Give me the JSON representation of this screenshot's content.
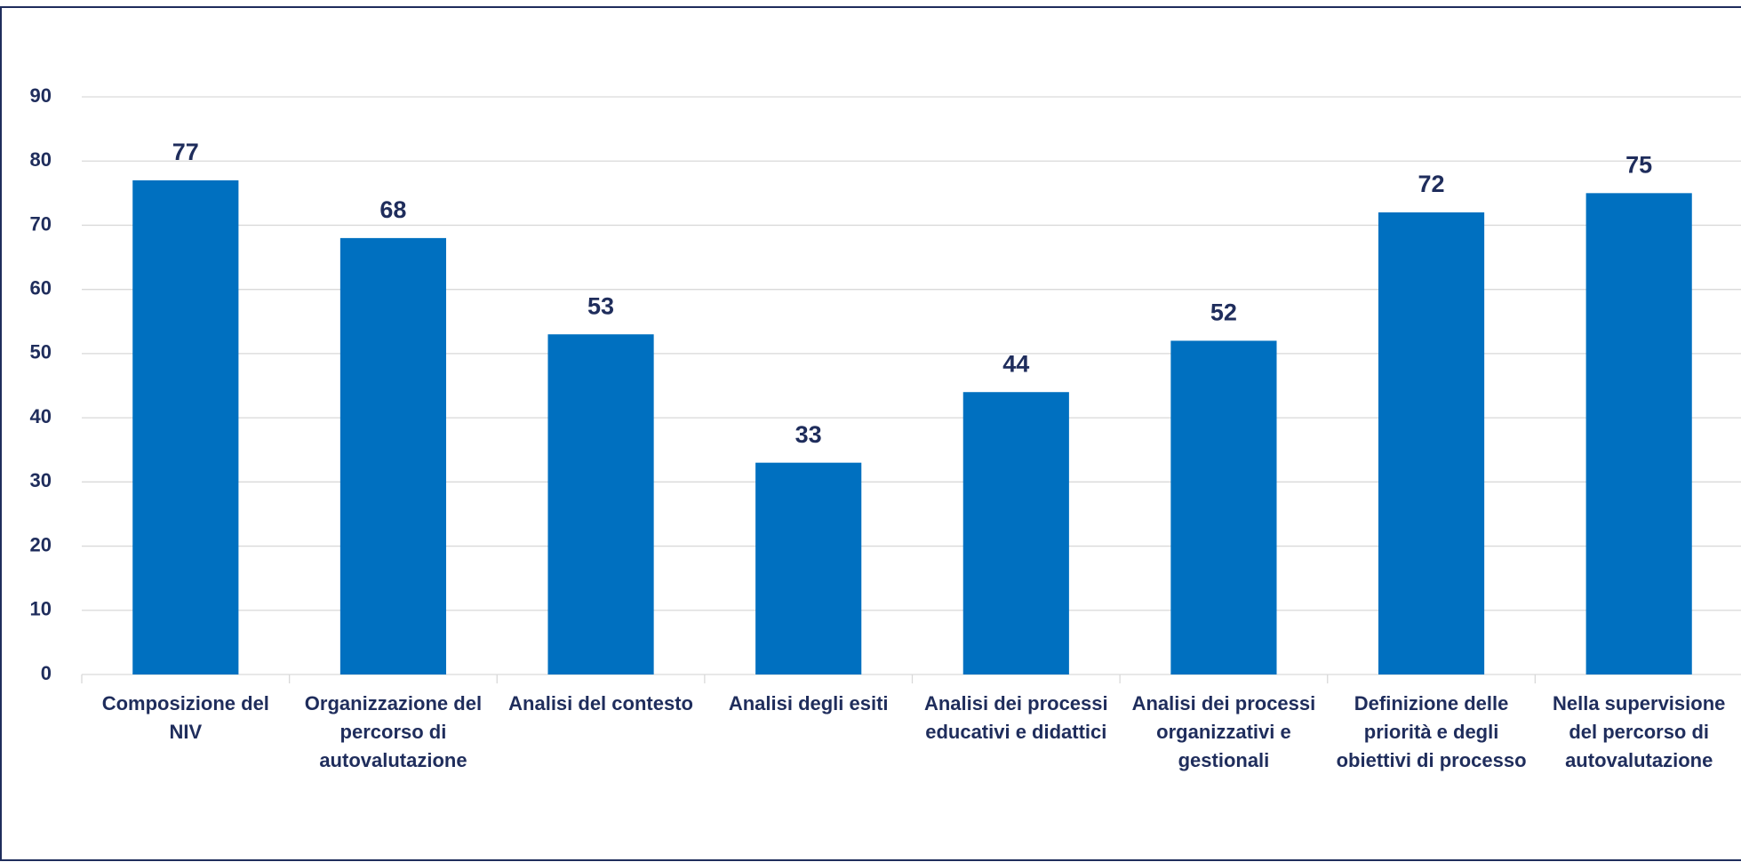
{
  "chart_data": {
    "type": "bar",
    "categories": [
      "Composizione del NIV",
      "Organizzazione del percorso di autovalutazione",
      "Analisi del contesto",
      "Analisi degli esiti",
      "Analisi dei processi educativi e didattici",
      "Analisi dei processi organizzativi e gestionali",
      "Definizione delle priorità e degli obiettivi di processo",
      "Nella supervisione del percorso di autovalutazione"
    ],
    "values": [
      77,
      68,
      53,
      33,
      44,
      52,
      72,
      75
    ],
    "color": "#0070c0",
    "ylim": [
      0,
      90
    ],
    "yticks": [
      0,
      10,
      20,
      30,
      40,
      50,
      60,
      70,
      80,
      90
    ],
    "grid": true
  }
}
